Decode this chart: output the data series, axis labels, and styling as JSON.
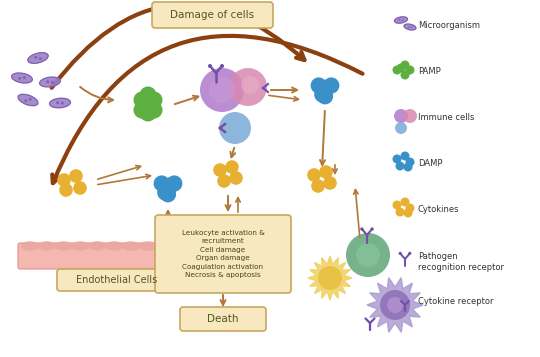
{
  "title": "Damage of cells",
  "death_label": "Death",
  "endothelial_label": "Endothelial Cells",
  "effects_text": "Leukocyte activation &\nrecruitment\nCell damage\nOrgan damage\nCoagulation activation\nNecrosis & apoptosis",
  "colors": {
    "bacteria": "#9b80c8",
    "pamp": "#5db040",
    "immune_purple": "#b07acc",
    "immune_pink": "#d888b0",
    "immune_blue": "#7aaad8",
    "damp": "#3a90c8",
    "cytokines": "#e8b030",
    "endo_fill": "#f5b8b0",
    "endo_bump": "#eaa8a0",
    "green_cell": "#68aa80",
    "dendritic": "#a898d0",
    "arrow_brown": "#8B4010",
    "arrow_tan": "#b07838",
    "box_fill": "#f8e8c0",
    "box_border": "#c8a860",
    "receptor_color": "#7050a8",
    "background": "#ffffff"
  }
}
